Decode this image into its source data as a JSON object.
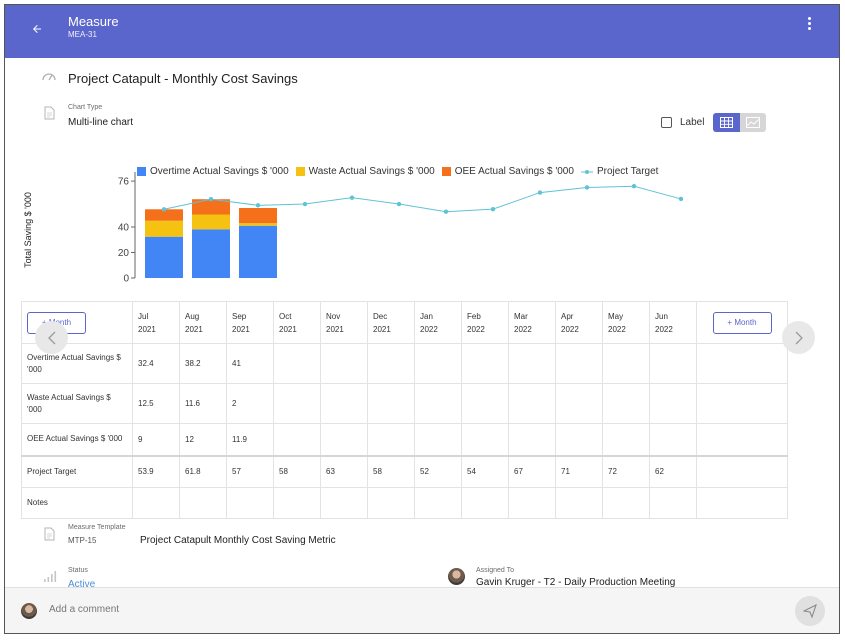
{
  "header": {
    "title": "Measure",
    "subtitle": "MEA-31"
  },
  "measure": {
    "name": "Project Catapult - Monthly Cost Savings",
    "chart_type_label": "Chart Type",
    "chart_type_value": "Multi-line chart",
    "label_toggle": "Label",
    "template_label": "Measure Template",
    "template_code": "MTP-15",
    "template_name": "Project Catapult Monthly Cost Saving Metric",
    "status_label": "Status",
    "status_value": "Active",
    "assigned_label": "Assigned To",
    "assigned_value": "Gavin Kruger - T2 - Daily Production Meeting"
  },
  "chart_data": {
    "type": "bar",
    "stacked": true,
    "ylabel": "Total Saving $ '000",
    "yticks": [
      0,
      20,
      40,
      76
    ],
    "ylim": [
      0,
      80
    ],
    "grid": false,
    "legend_position": "top",
    "categories": [
      "Jul 2021",
      "Aug 2021",
      "Sep 2021",
      "Oct 2021",
      "Nov 2021",
      "Dec 2021",
      "Jan 2022",
      "Feb 2022",
      "Mar 2022",
      "Apr 2022",
      "May 2022",
      "Jun 2022"
    ],
    "series": [
      {
        "name": "Overtime Actual Savings $ '000",
        "kind": "bar",
        "color": "#4285f4",
        "values": [
          32.4,
          38.2,
          41,
          null,
          null,
          null,
          null,
          null,
          null,
          null,
          null,
          null
        ]
      },
      {
        "name": "Waste Actual Savings $ '000",
        "kind": "bar",
        "color": "#f5c211",
        "values": [
          12.5,
          11.6,
          2,
          null,
          null,
          null,
          null,
          null,
          null,
          null,
          null,
          null
        ]
      },
      {
        "name": "OEE Actual Savings $ '000",
        "kind": "bar",
        "color": "#f5701b",
        "values": [
          9,
          12,
          11.9,
          null,
          null,
          null,
          null,
          null,
          null,
          null,
          null,
          null
        ]
      },
      {
        "name": "Project Target",
        "kind": "line",
        "color": "#5fc3d6",
        "values": [
          53.9,
          61.8,
          57,
          58,
          63,
          58,
          52,
          54,
          67,
          71,
          72,
          62
        ]
      }
    ]
  },
  "table": {
    "add_month_left": "+ Month",
    "add_month_right": "+ Month",
    "months": [
      {
        "m": "Jul",
        "y": "2021"
      },
      {
        "m": "Aug",
        "y": "2021"
      },
      {
        "m": "Sep",
        "y": "2021"
      },
      {
        "m": "Oct",
        "y": "2021"
      },
      {
        "m": "Nov",
        "y": "2021"
      },
      {
        "m": "Dec",
        "y": "2021"
      },
      {
        "m": "Jan",
        "y": "2022"
      },
      {
        "m": "Feb",
        "y": "2022"
      },
      {
        "m": "Mar",
        "y": "2022"
      },
      {
        "m": "Apr",
        "y": "2022"
      },
      {
        "m": "May",
        "y": "2022"
      },
      {
        "m": "Jun",
        "y": "2022"
      }
    ],
    "rows": [
      {
        "label": "Overtime Actual Savings $ '000",
        "values": [
          "32.4",
          "38.2",
          "41",
          "",
          "",
          "",
          "",
          "",
          "",
          "",
          "",
          ""
        ]
      },
      {
        "label": "Waste Actual Savings $ '000",
        "values": [
          "12.5",
          "11.6",
          "2",
          "",
          "",
          "",
          "",
          "",
          "",
          "",
          "",
          ""
        ]
      },
      {
        "label": "OEE Actual Savings $ '000",
        "values": [
          "9",
          "12",
          "11.9",
          "",
          "",
          "",
          "",
          "",
          "",
          "",
          "",
          ""
        ]
      },
      {
        "label": "Project Target",
        "values": [
          "53.9",
          "61.8",
          "57",
          "58",
          "63",
          "58",
          "52",
          "54",
          "67",
          "71",
          "72",
          "62"
        ]
      },
      {
        "label": "Notes",
        "values": [
          "",
          "",
          "",
          "",
          "",
          "",
          "",
          "",
          "",
          "",
          "",
          ""
        ]
      }
    ]
  },
  "comment": {
    "placeholder": "Add a comment"
  },
  "colors": {
    "primary": "#5b66cc",
    "status_active": "#4a90d9"
  }
}
